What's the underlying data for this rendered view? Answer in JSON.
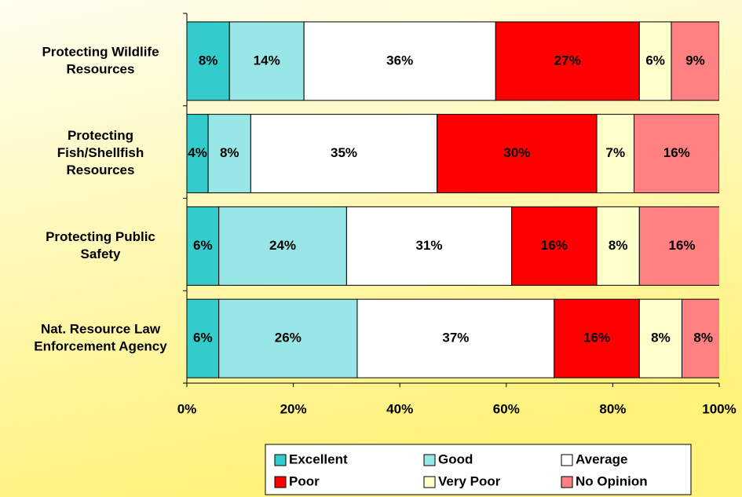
{
  "chart_data": {
    "type": "stacked_bar_horizontal",
    "categories": [
      [
        "Protecting Wildlife",
        "Resources"
      ],
      [
        "Protecting",
        "Fish/Shellfish",
        "Resources"
      ],
      [
        "Protecting Public",
        "Safety"
      ],
      [
        "Nat. Resource Law",
        "Enforcement Agency"
      ]
    ],
    "series": [
      {
        "name": "Excellent",
        "color": "#33cccc",
        "values": [
          8,
          4,
          6,
          6
        ],
        "value_labels": [
          "8%",
          "4%",
          "6%",
          "6%"
        ]
      },
      {
        "name": "Good",
        "color": "#99e6e6",
        "values": [
          14,
          8,
          24,
          26
        ],
        "value_labels": [
          "14%",
          "8%",
          "24%",
          "26%"
        ]
      },
      {
        "name": "Average",
        "color": "#ffffff",
        "values": [
          36,
          35,
          31,
          37
        ],
        "value_labels": [
          "36%",
          "35%",
          "31%",
          "37%"
        ]
      },
      {
        "name": "Poor",
        "color": "#ff0000",
        "values": [
          27,
          30,
          16,
          16
        ],
        "value_labels": [
          "27%",
          "30%",
          "16%",
          "16%"
        ]
      },
      {
        "name": "Very Poor",
        "color": "#ffffcc",
        "values": [
          6,
          7,
          8,
          8
        ],
        "value_labels": [
          "6%",
          "7%",
          "8%",
          "8%"
        ]
      },
      {
        "name": "No Opinion",
        "color": "#ff8080",
        "values": [
          9,
          16,
          16,
          8
        ],
        "value_labels": [
          "9%",
          "16%",
          "16%",
          "8%"
        ]
      }
    ],
    "xlim": [
      0,
      100
    ],
    "xticks": [
      {
        "value": 0,
        "label": "0%"
      },
      {
        "value": 20,
        "label": "20%"
      },
      {
        "value": 40,
        "label": "40%"
      },
      {
        "value": 60,
        "label": "60%"
      },
      {
        "value": 80,
        "label": "80%"
      },
      {
        "value": 100,
        "label": "100%"
      }
    ]
  }
}
